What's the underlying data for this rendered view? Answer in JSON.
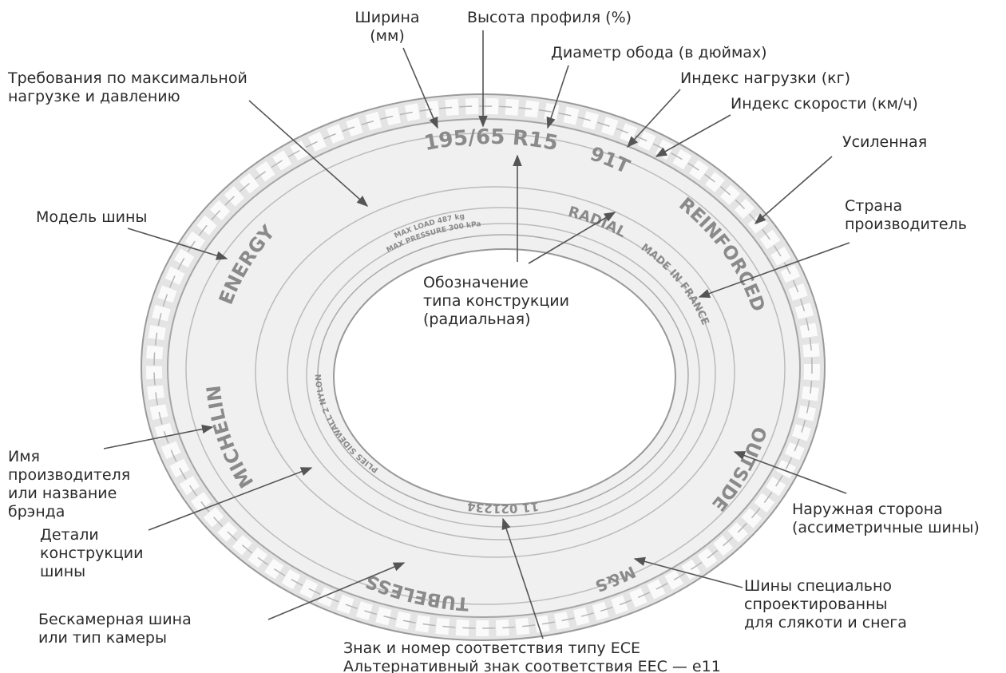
{
  "labels": [
    {
      "lines": [
        "Ширина",
        "(мм)"
      ]
    },
    {
      "lines": [
        "Высота профиля (%)"
      ]
    },
    {
      "lines": [
        "Диаметр обода (в дюймах)"
      ]
    },
    {
      "lines": [
        "Индекс нагрузки (кг)"
      ]
    },
    {
      "lines": [
        "Индекс скорости (км/ч)"
      ]
    },
    {
      "lines": [
        "Усиленная"
      ]
    },
    {
      "lines": [
        "Страна",
        "производитель"
      ]
    },
    {
      "lines": [
        "Требования по максимальной",
        "нагрузке и давлению"
      ]
    },
    {
      "lines": [
        "Модель шины"
      ]
    },
    {
      "lines": [
        "Обозначение",
        "типа конструкции",
        "(радиальная)"
      ]
    },
    {
      "lines": [
        "Имя",
        "производителя",
        "или название",
        "брэнда"
      ]
    },
    {
      "lines": [
        "Детали",
        "конструкции",
        "шины"
      ]
    },
    {
      "lines": [
        "Бескамерная шина",
        "или тип камеры"
      ]
    },
    {
      "lines": [
        "Знак и номер соответствия типу ECE",
        "Альтернативный знак соответствия EEC — e11"
      ]
    },
    {
      "lines": [
        "Шины специально",
        "спроектированны",
        "для  слякоти и снега"
      ]
    },
    {
      "lines": [
        "Наружная сторона",
        "(ассиметричные шины)"
      ]
    }
  ],
  "markings": [
    "195/65 R15",
    "91T",
    "REINFORCED",
    "OUTSIDE",
    "M&S",
    "TUBELESS",
    "MICHELIN",
    "ENERGY",
    "RADIAL",
    "MADE IN FRANCE",
    "11 021234",
    "PLIES SIDEWALL 2 NYLON",
    "MAX LOAD 487 kg",
    "MAX PRESSURE 300 kPa"
  ]
}
